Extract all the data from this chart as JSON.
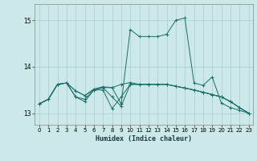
{
  "xlabel": "Humidex (Indice chaleur)",
  "bg_color": "#cce8e8",
  "grid_color": "#aacccc",
  "line_color": "#1a6e6a",
  "xlim": [
    -0.5,
    23.5
  ],
  "ylim": [
    12.75,
    15.35
  ],
  "yticks": [
    13,
    14,
    15
  ],
  "xticks": [
    0,
    1,
    2,
    3,
    4,
    5,
    6,
    7,
    8,
    9,
    10,
    11,
    12,
    13,
    14,
    15,
    16,
    17,
    18,
    19,
    20,
    21,
    22,
    23
  ],
  "lines": [
    {
      "x": [
        0,
        1,
        2,
        3,
        4,
        5,
        6,
        7,
        8,
        9,
        10,
        11,
        12,
        13,
        14,
        15,
        16,
        17,
        18,
        19,
        20,
        21,
        22,
        23
      ],
      "y": [
        13.2,
        13.3,
        13.62,
        13.65,
        13.48,
        13.38,
        13.5,
        13.55,
        13.55,
        13.2,
        14.8,
        14.65,
        14.65,
        14.65,
        14.7,
        15.0,
        15.05,
        13.65,
        13.6,
        13.78,
        13.22,
        13.12,
        13.06,
        13.0
      ]
    },
    {
      "x": [
        0,
        1,
        2,
        3,
        4,
        5,
        6,
        7,
        8,
        9,
        10,
        11,
        12,
        13,
        14,
        15,
        16,
        17,
        18,
        19,
        20,
        21,
        22,
        23
      ],
      "y": [
        13.2,
        13.3,
        13.62,
        13.65,
        13.48,
        13.38,
        13.52,
        13.57,
        13.55,
        13.62,
        13.66,
        13.62,
        13.62,
        13.62,
        13.62,
        13.58,
        13.54,
        13.5,
        13.45,
        13.4,
        13.35,
        13.25,
        13.12,
        13.0
      ]
    },
    {
      "x": [
        0,
        1,
        2,
        3,
        4,
        5,
        6,
        7,
        8,
        9,
        10,
        11,
        12,
        13,
        14,
        15,
        16,
        17,
        18,
        19,
        20,
        21,
        22,
        23
      ],
      "y": [
        13.2,
        13.3,
        13.62,
        13.65,
        13.35,
        13.25,
        13.5,
        13.55,
        13.35,
        13.15,
        13.62,
        13.62,
        13.62,
        13.62,
        13.62,
        13.58,
        13.54,
        13.5,
        13.45,
        13.4,
        13.35,
        13.25,
        13.12,
        13.0
      ]
    },
    {
      "x": [
        0,
        1,
        2,
        3,
        4,
        5,
        6,
        7,
        8,
        9,
        10,
        11,
        12,
        13,
        14,
        15,
        16,
        17,
        18,
        19,
        20,
        21,
        22,
        23
      ],
      "y": [
        13.2,
        13.3,
        13.62,
        13.65,
        13.35,
        13.3,
        13.5,
        13.5,
        13.1,
        13.35,
        13.62,
        13.62,
        13.62,
        13.62,
        13.62,
        13.58,
        13.54,
        13.5,
        13.45,
        13.4,
        13.35,
        13.25,
        13.12,
        13.0
      ]
    }
  ]
}
